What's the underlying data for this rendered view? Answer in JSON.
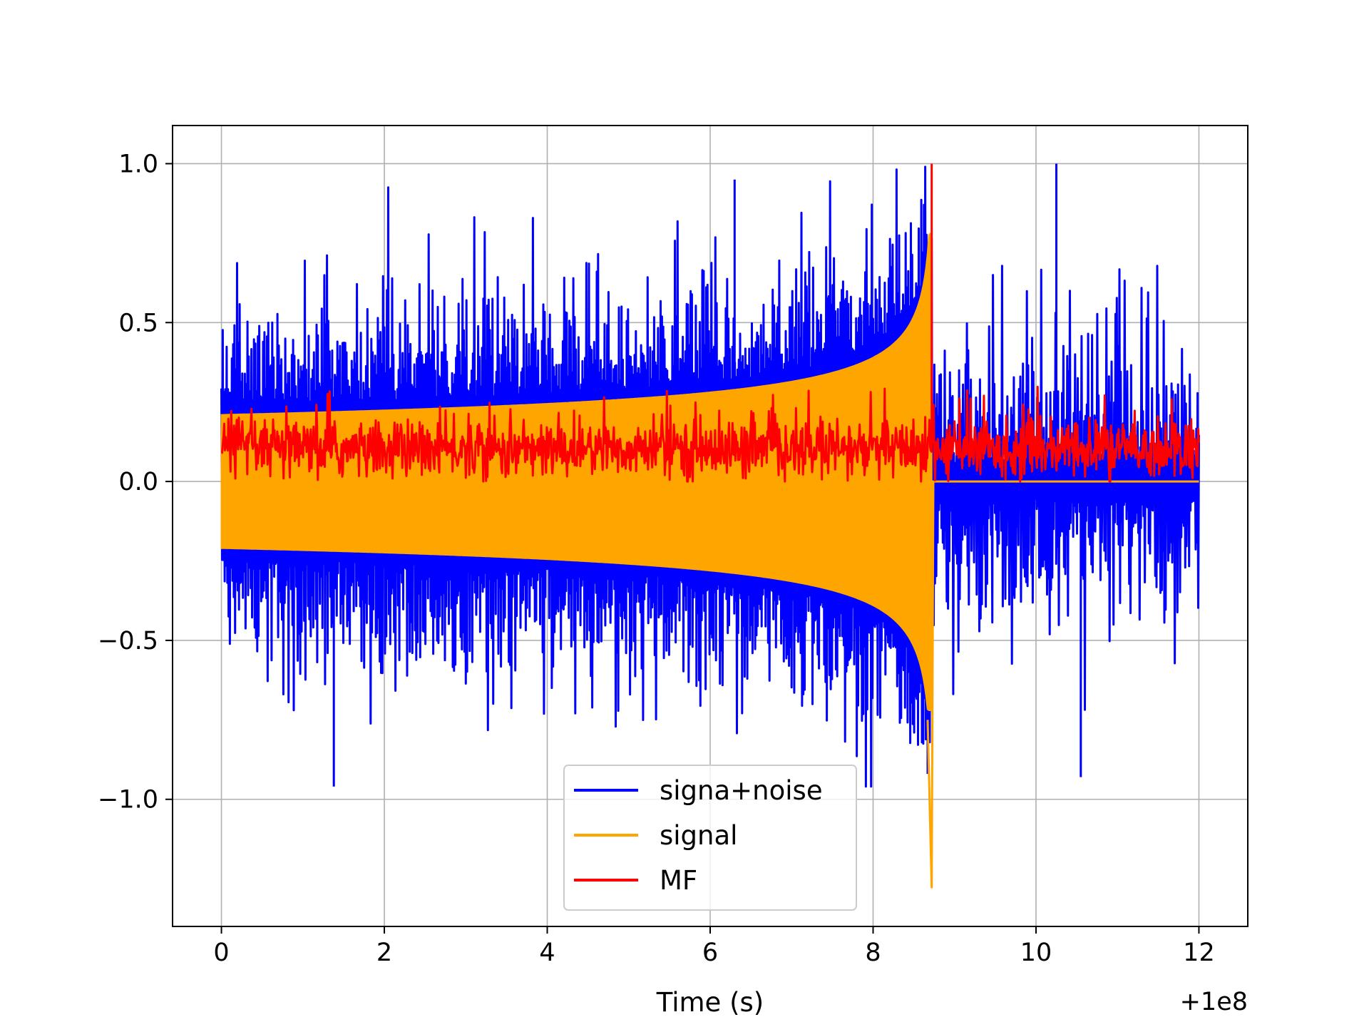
{
  "chart_data": {
    "type": "line",
    "title": "",
    "xlabel": "Time (s)",
    "ylabel": "",
    "x_offset_label": "+1e8",
    "xlim": [
      -0.6,
      12.6
    ],
    "ylim": [
      -1.4,
      1.12
    ],
    "x_data_range": [
      0,
      12
    ],
    "grid": true,
    "legend_position": "lower center",
    "x_ticks": [
      {
        "value": 0,
        "label": "0"
      },
      {
        "value": 2,
        "label": "2"
      },
      {
        "value": 4,
        "label": "4"
      },
      {
        "value": 6,
        "label": "6"
      },
      {
        "value": 8,
        "label": "8"
      },
      {
        "value": 10,
        "label": "10"
      },
      {
        "value": 12,
        "label": "12"
      }
    ],
    "y_ticks": [
      {
        "value": 1.0,
        "label": "1.0"
      },
      {
        "value": 0.5,
        "label": "0.5"
      },
      {
        "value": 0.0,
        "label": "0.0"
      },
      {
        "value": -0.5,
        "label": "−0.5"
      },
      {
        "value": -1.0,
        "label": "−1.0"
      }
    ],
    "series": [
      {
        "name": "signa+noise",
        "color": "#0000ff",
        "description_values": {
          "envelope_upper_typical": [
            0.2,
            0.75
          ],
          "envelope_lower_typical": [
            -0.2,
            -0.75
          ],
          "max": 1.0,
          "min": -0.96,
          "merger_time": 8.72
        }
      },
      {
        "name": "signal",
        "color": "#ffa500",
        "description_values": {
          "amplitude_start": 0.21,
          "amplitude_at_8": 0.32,
          "peak_positive": 0.78,
          "peak_negative": -1.28,
          "merger_time": 8.72
        }
      },
      {
        "name": "MF",
        "color": "#ff0000",
        "description_values": {
          "baseline_range": [
            0.0,
            0.28
          ],
          "peak": 1.0,
          "peak_time": 8.72
        }
      }
    ]
  }
}
